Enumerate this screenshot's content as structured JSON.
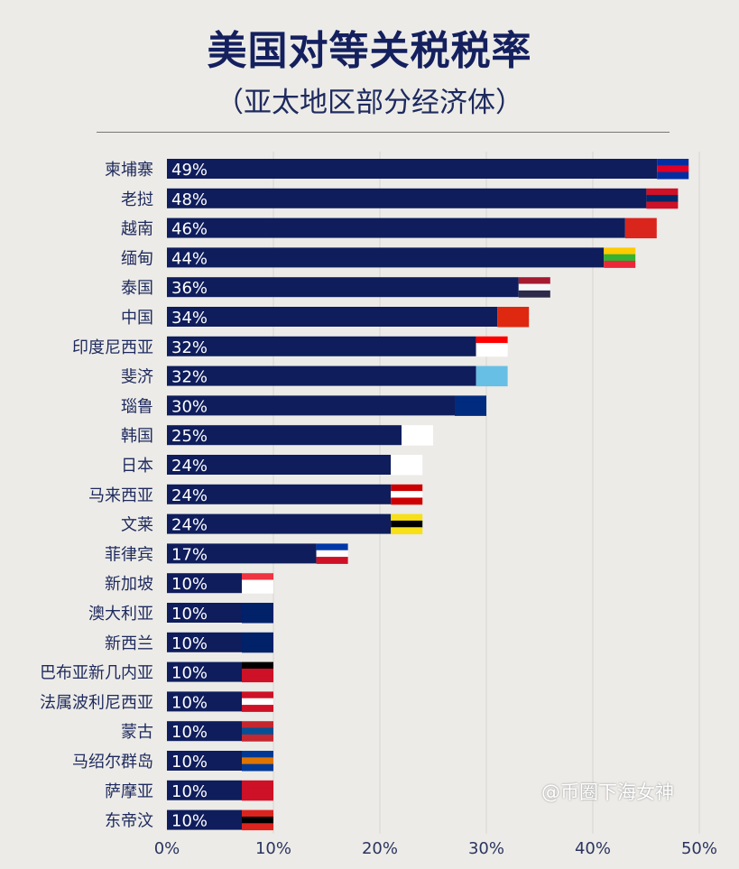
{
  "title": "美国对等关税税率",
  "subtitle": "（亚太地区部分经济体）",
  "watermark": "@币圈下海女神",
  "chart_data": {
    "type": "bar",
    "orientation": "horizontal",
    "title": "美国对等关税税率",
    "subtitle": "（亚太地区部分经济体）",
    "categories": [
      "柬埔寨",
      "老挝",
      "越南",
      "缅甸",
      "泰国",
      "中国",
      "印度尼西亚",
      "斐济",
      "瑙鲁",
      "韩国",
      "日本",
      "马来西亚",
      "文莱",
      "菲律宾",
      "新加坡",
      "澳大利亚",
      "新西兰",
      "巴布亚新几内亚",
      "法属波利尼西亚",
      "蒙古",
      "马绍尔群岛",
      "萨摩亚",
      "东帝汶"
    ],
    "values": [
      49,
      48,
      46,
      44,
      36,
      34,
      32,
      32,
      30,
      25,
      24,
      24,
      24,
      17,
      10,
      10,
      10,
      10,
      10,
      10,
      10,
      10,
      10
    ],
    "data_labels": [
      "49%",
      "48%",
      "46%",
      "44%",
      "36%",
      "34%",
      "32%",
      "32%",
      "30%",
      "25%",
      "24%",
      "24%",
      "24%",
      "17%",
      "10%",
      "10%",
      "10%",
      "10%",
      "10%",
      "10%",
      "10%",
      "10%",
      "10%"
    ],
    "xlim": [
      0,
      50
    ],
    "x_ticks": [
      "0%",
      "10%",
      "20%",
      "30%",
      "40%",
      "50%"
    ],
    "grid": true,
    "bar_color": "#0f1d5c",
    "flags": [
      [
        "#032ea1",
        "#e00025",
        "#032ea1"
      ],
      [
        "#ce1126",
        "#002868",
        "#ce1126"
      ],
      [
        "#da251d",
        "#da251d",
        "#da251d"
      ],
      [
        "#fecb00",
        "#34b233",
        "#ea2839"
      ],
      [
        "#a51931",
        "#f4f5f8",
        "#2d2a4a"
      ],
      [
        "#de2910",
        "#de2910",
        "#de2910"
      ],
      [
        "#ff0000",
        "#ffffff",
        "#ffffff"
      ],
      [
        "#68bfe5",
        "#68bfe5",
        "#68bfe5"
      ],
      [
        "#002b7f",
        "#002b7f",
        "#002b7f"
      ],
      [
        "#ffffff",
        "#ffffff",
        "#ffffff"
      ],
      [
        "#ffffff",
        "#ffffff",
        "#ffffff"
      ],
      [
        "#cc0001",
        "#ffffff",
        "#cc0001"
      ],
      [
        "#f7e017",
        "#000000",
        "#f7e017"
      ],
      [
        "#0038a8",
        "#ffffff",
        "#ce1126"
      ],
      [
        "#ef3340",
        "#ffffff",
        "#ffffff"
      ],
      [
        "#012169",
        "#012169",
        "#012169"
      ],
      [
        "#012169",
        "#012169",
        "#012169"
      ],
      [
        "#000000",
        "#ce1126",
        "#ce1126"
      ],
      [
        "#ce1126",
        "#ffffff",
        "#ce1126"
      ],
      [
        "#c4272f",
        "#015197",
        "#c4272f"
      ],
      [
        "#003893",
        "#dd7500",
        "#003893"
      ],
      [
        "#ce1126",
        "#ce1126",
        "#ce1126"
      ],
      [
        "#dc241f",
        "#000000",
        "#dc241f"
      ]
    ]
  }
}
